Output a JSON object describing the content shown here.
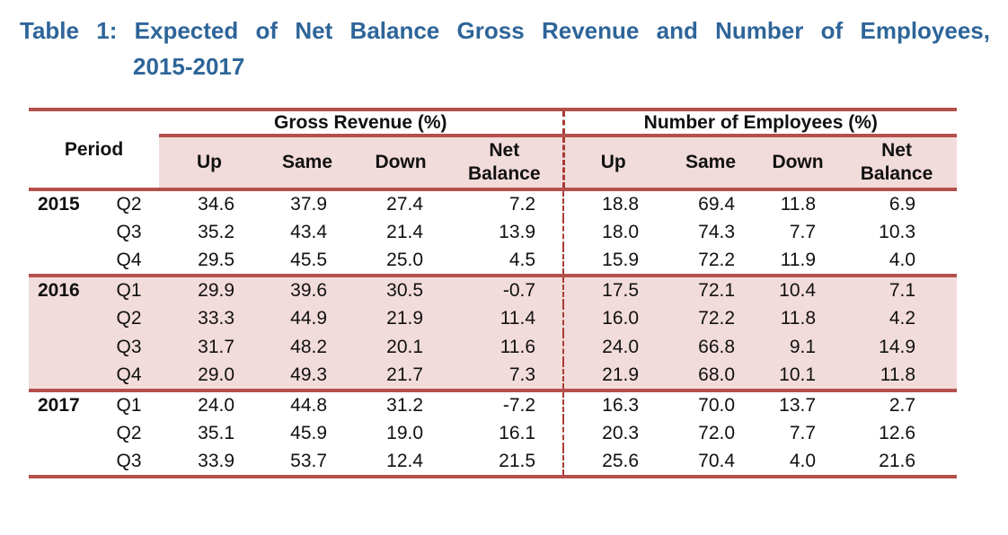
{
  "title": {
    "line1": "Table 1: Expected of Net Balance Gross Revenue and Number of Employees,",
    "line2": "2015-2017"
  },
  "table": {
    "period_header": "Period",
    "groups": [
      {
        "label": "Gross Revenue (%)"
      },
      {
        "label": "Number of Employees (%)"
      }
    ],
    "sub_headers": [
      "Up",
      "Same",
      "Down",
      "Net\nBalance"
    ],
    "sections": [
      {
        "year": "2015",
        "highlight": false,
        "rows": [
          {
            "quarter": "Q2",
            "gross": [
              "34.6",
              "37.9",
              "27.4",
              "7.2"
            ],
            "employees": [
              "18.8",
              "69.4",
              "11.8",
              "6.9"
            ]
          },
          {
            "quarter": "Q3",
            "gross": [
              "35.2",
              "43.4",
              "21.4",
              "13.9"
            ],
            "employees": [
              "18.0",
              "74.3",
              "7.7",
              "10.3"
            ]
          },
          {
            "quarter": "Q4",
            "gross": [
              "29.5",
              "45.5",
              "25.0",
              "4.5"
            ],
            "employees": [
              "15.9",
              "72.2",
              "11.9",
              "4.0"
            ]
          }
        ]
      },
      {
        "year": "2016",
        "highlight": true,
        "rows": [
          {
            "quarter": "Q1",
            "gross": [
              "29.9",
              "39.6",
              "30.5",
              "-0.7"
            ],
            "employees": [
              "17.5",
              "72.1",
              "10.4",
              "7.1"
            ]
          },
          {
            "quarter": "Q2",
            "gross": [
              "33.3",
              "44.9",
              "21.9",
              "11.4"
            ],
            "employees": [
              "16.0",
              "72.2",
              "11.8",
              "4.2"
            ]
          },
          {
            "quarter": "Q3",
            "gross": [
              "31.7",
              "48.2",
              "20.1",
              "11.6"
            ],
            "employees": [
              "24.0",
              "66.8",
              "9.1",
              "14.9"
            ]
          },
          {
            "quarter": "Q4",
            "gross": [
              "29.0",
              "49.3",
              "21.7",
              "7.3"
            ],
            "employees": [
              "21.9",
              "68.0",
              "10.1",
              "11.8"
            ]
          }
        ]
      },
      {
        "year": "2017",
        "highlight": false,
        "rows": [
          {
            "quarter": "Q1",
            "gross": [
              "24.0",
              "44.8",
              "31.2",
              "-7.2"
            ],
            "employees": [
              "16.3",
              "70.0",
              "13.7",
              "2.7"
            ]
          },
          {
            "quarter": "Q2",
            "gross": [
              "35.1",
              "45.9",
              "19.0",
              "16.1"
            ],
            "employees": [
              "20.3",
              "72.0",
              "7.7",
              "12.6"
            ]
          },
          {
            "quarter": "Q3",
            "gross": [
              "33.9",
              "53.7",
              "12.4",
              "21.5"
            ],
            "employees": [
              "25.6",
              "70.4",
              "4.0",
              "21.6"
            ]
          }
        ]
      }
    ]
  },
  "colors": {
    "title_blue": "#2e6599",
    "border_red": "#b3504c",
    "band_pink": "#f2dcdb",
    "divider_red": "#a83c36",
    "text_black": "#111111"
  }
}
